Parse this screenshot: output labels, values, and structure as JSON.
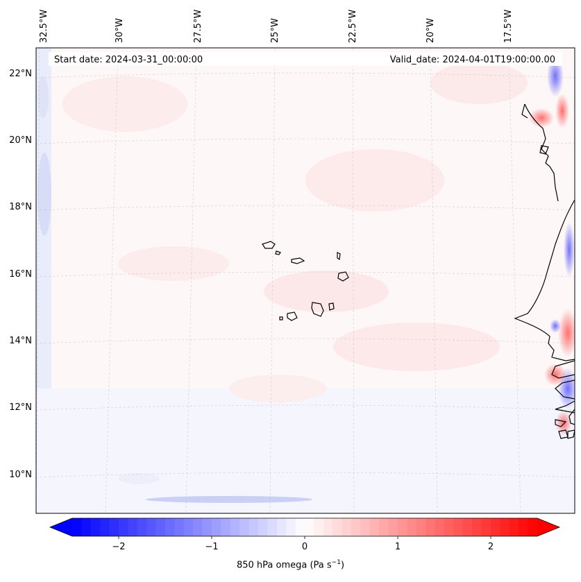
{
  "map": {
    "start_date_label": "Start date: 2024-03-31_00:00:00",
    "valid_date_label": "Valid_date: 2024-04-01T19:00:00.00",
    "top_lon_labels": [
      "32.5°W",
      "30°W",
      "27.5°W",
      "25°W",
      "22.5°W",
      "20°W",
      "17.5°W"
    ],
    "left_lat_labels": [
      "22°N",
      "20°N",
      "18°N",
      "16°N",
      "14°N",
      "12°N",
      "10°N"
    ],
    "gridlines": true,
    "coastline_color": "#000000"
  },
  "colorbar": {
    "tick_labels": [
      "−2",
      "−1",
      "0",
      "1",
      "2"
    ],
    "range": [
      -2.7,
      2.7
    ],
    "colormap": "bwr",
    "color_low": "#0000ff",
    "color_mid": "#ffffff",
    "color_high": "#ff0000",
    "label_text": "850 hPa omega (Pa s",
    "label_exponent": "−1",
    "label_suffix": ")"
  }
}
